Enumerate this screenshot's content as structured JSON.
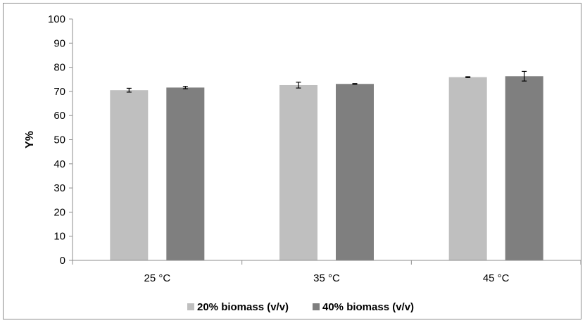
{
  "chart_data": {
    "type": "bar",
    "title": "",
    "xlabel": "",
    "ylabel": "Y%",
    "ylim": [
      0,
      100
    ],
    "yticks": [
      "0",
      "10",
      "20",
      "30",
      "40",
      "50",
      "60",
      "70",
      "80",
      "90",
      "100"
    ],
    "categories": [
      "25 °C",
      "35 °C",
      "45 °C"
    ],
    "grid": false,
    "legend": "bottom",
    "series": [
      {
        "name": "20% biomass (v/v)",
        "color": "#bfbfbf",
        "values": [
          70.5,
          72.6,
          75.9
        ],
        "errors": [
          0.8,
          1.2,
          0.2
        ]
      },
      {
        "name": "40% biomass (v/v)",
        "color": "#7f7f7f",
        "values": [
          71.6,
          73.1,
          76.3
        ],
        "errors": [
          0.5,
          0.15,
          2.0
        ]
      }
    ]
  }
}
